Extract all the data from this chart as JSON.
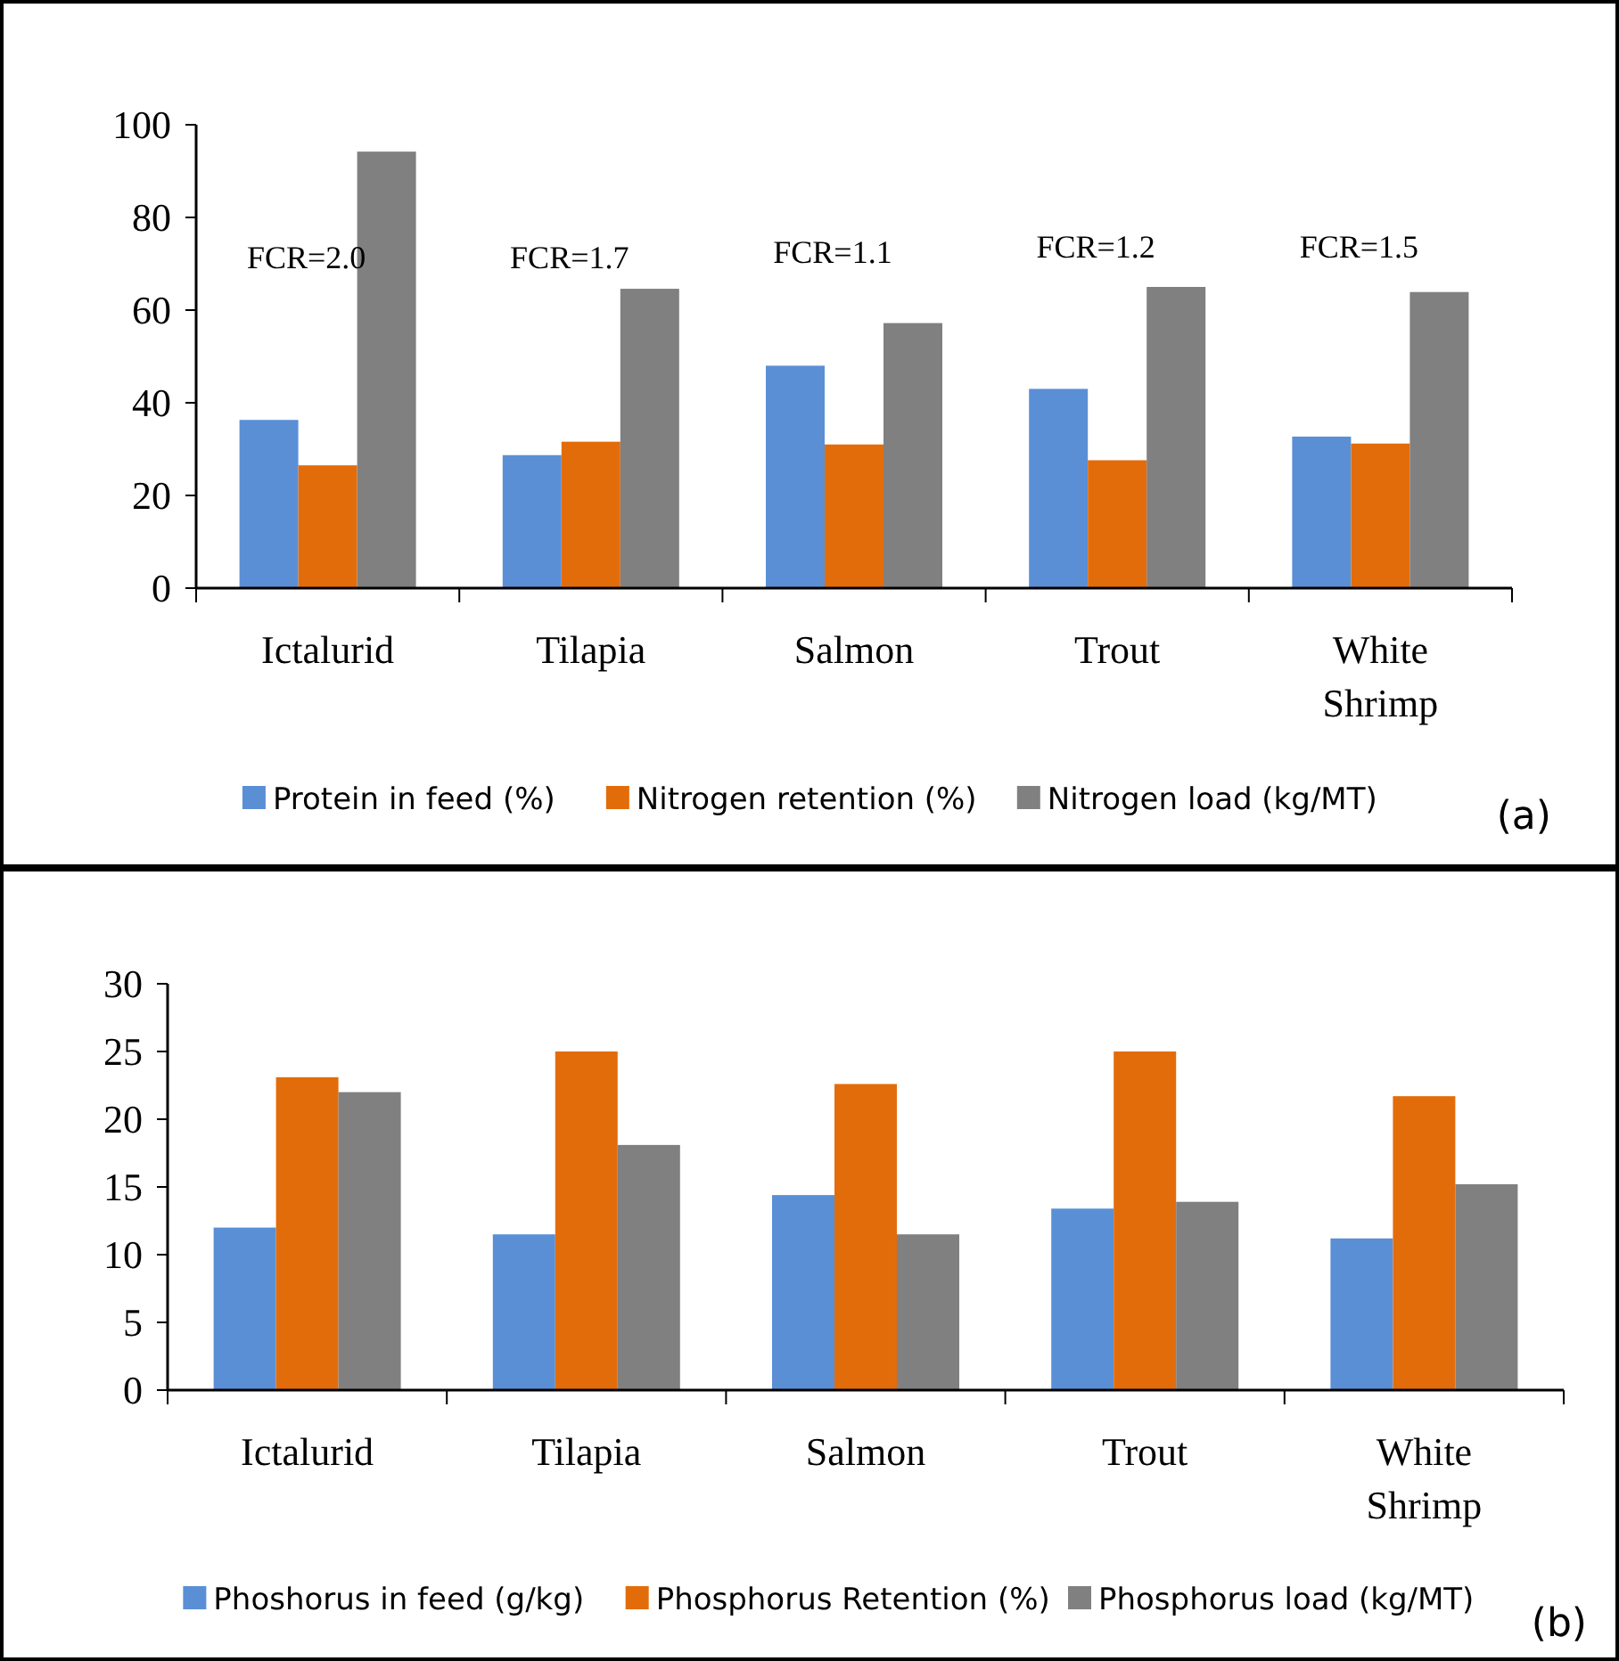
{
  "chart_data": [
    {
      "type": "bar",
      "categories": [
        "Ictalurid",
        "Tilapia",
        "Salmon",
        "Trout",
        "White Shrimp"
      ],
      "series": [
        {
          "name": "Protein in feed (%)",
          "color": "#5a8fd6",
          "values": [
            36.3,
            28.7,
            48,
            43,
            32.7
          ]
        },
        {
          "name": "Nitrogen retention (%)",
          "color": "#e36c0a",
          "values": [
            26.5,
            31.6,
            31,
            27.6,
            31.2
          ]
        },
        {
          "name": "Nitrogen load (kg/MT)",
          "color": "#808080",
          "values": [
            94.2,
            64.6,
            57.2,
            65,
            63.9
          ]
        }
      ],
      "ylim": [
        0,
        100
      ],
      "yticks": [
        0,
        20,
        40,
        60,
        80,
        100
      ],
      "legend": "bottom",
      "annotations": [
        "FCR=2.0",
        "FCR=1.7",
        "FCR=1.1",
        "FCR=1.2",
        "FCR=1.5",
        "(a)"
      ]
    },
    {
      "type": "bar",
      "categories": [
        "Ictalurid",
        "Tilapia",
        "Salmon",
        "Trout",
        "White Shrimp"
      ],
      "series": [
        {
          "name": "Phoshorus in feed (g/kg)",
          "color": "#5a8fd6",
          "values": [
            12,
            11.5,
            14.4,
            13.4,
            11.2
          ]
        },
        {
          "name": "Phosphorus Retention (%)",
          "color": "#e36c0a",
          "values": [
            23.1,
            25,
            22.6,
            25,
            21.7
          ]
        },
        {
          "name": "Phosphorus load (kg/MT)",
          "color": "#808080",
          "values": [
            22,
            18.1,
            11.5,
            13.9,
            15.2
          ]
        }
      ],
      "ylim": [
        0,
        30
      ],
      "yticks": [
        0,
        5,
        10,
        15,
        20,
        25,
        30
      ],
      "legend": "bottom",
      "annotations": [
        "(b)"
      ]
    }
  ]
}
